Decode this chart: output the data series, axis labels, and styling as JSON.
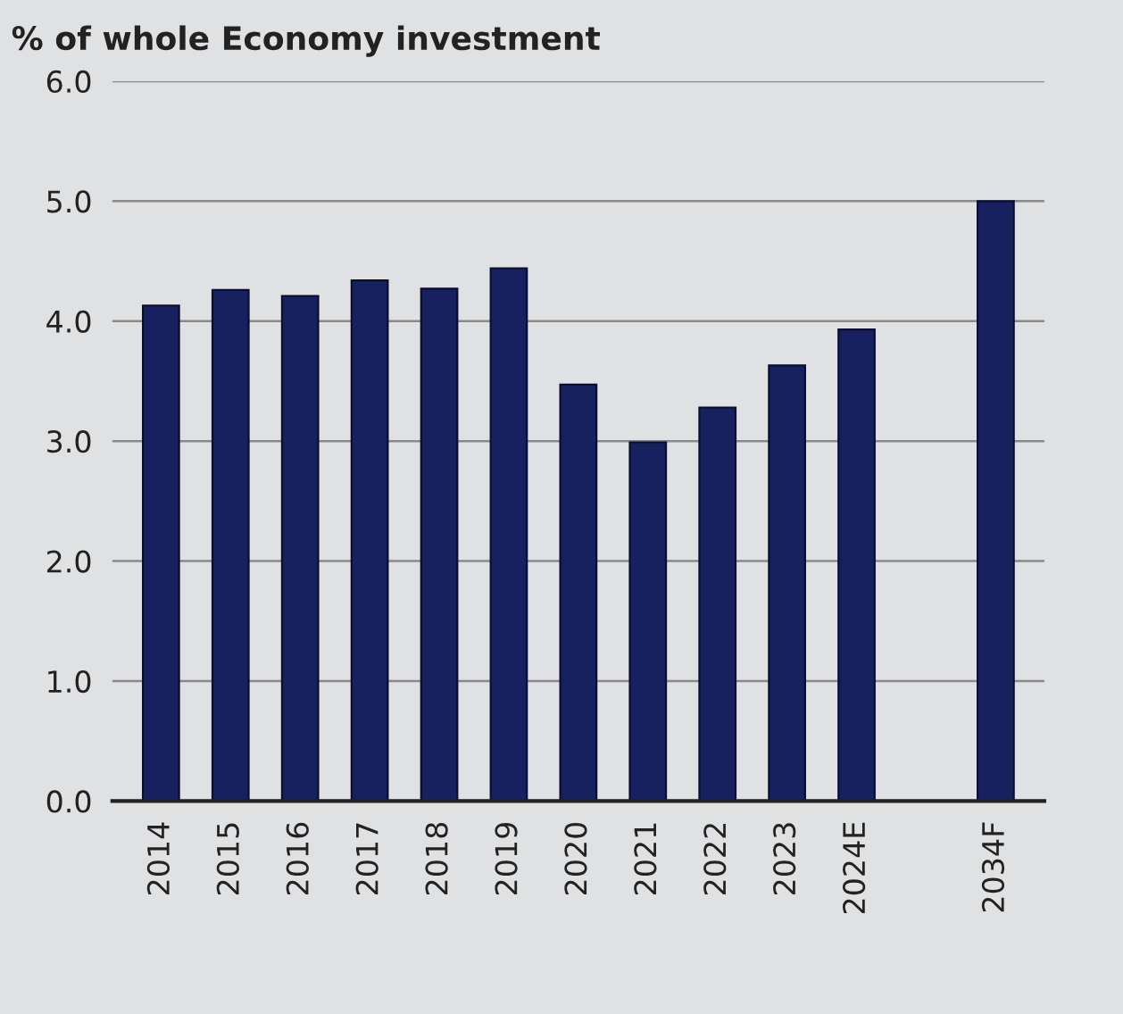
{
  "chart_data": {
    "type": "bar",
    "ylabel": "% of whole Economy investment",
    "categories": [
      "2014",
      "2015",
      "2016",
      "2017",
      "2018",
      "2019",
      "2020",
      "2021",
      "2022",
      "2023",
      "2024E",
      null,
      "2034F"
    ],
    "values": [
      4.13,
      4.26,
      4.21,
      4.34,
      4.27,
      4.44,
      3.47,
      2.99,
      3.28,
      3.63,
      3.93,
      null,
      5.0
    ],
    "color": "#172160",
    "ylim": [
      0,
      6
    ],
    "yticks": [
      {
        "value": 0,
        "label": "0.0"
      },
      {
        "value": 1,
        "label": "1.0"
      },
      {
        "value": 2,
        "label": "2.0"
      },
      {
        "value": 3,
        "label": "3.0"
      },
      {
        "value": 4,
        "label": "4.0"
      },
      {
        "value": 5,
        "label": "5.0"
      },
      {
        "value": 6,
        "label": "6.0"
      }
    ],
    "grid": "y"
  }
}
